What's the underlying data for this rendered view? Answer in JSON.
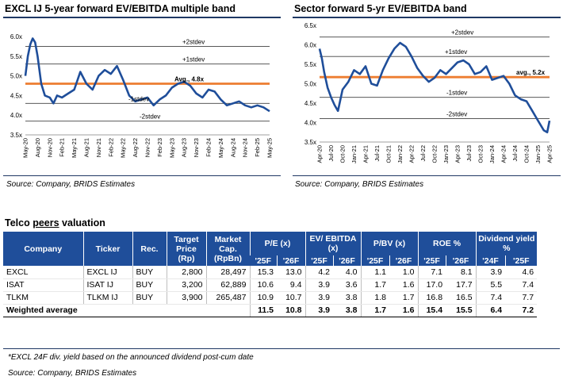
{
  "chart_data": [
    {
      "type": "line",
      "title": "EXCL IJ 5-year forward EV/EBITDA multiple band",
      "xlabel": "",
      "ylabel": "",
      "ylim": [
        3.5,
        6.0
      ],
      "yticks": [
        "3.5x",
        "4.0x",
        "4.5x",
        "5.0x",
        "5.5x",
        "6.0x"
      ],
      "xticks": [
        "May-20",
        "Aug-20",
        "Nov-20",
        "Feb-21",
        "May-21",
        "Aug-21",
        "Nov-21",
        "Feb-22",
        "May-22",
        "Aug-22",
        "Nov-22",
        "Feb-23",
        "May-23",
        "Aug-23",
        "Nov-23",
        "Feb-24",
        "May-24",
        "Aug-24",
        "Nov-24",
        "Feb-25",
        "May-25"
      ],
      "series": [
        {
          "name": "EV/EBITDA",
          "x": [
            0,
            0.2,
            0.4,
            0.6,
            0.8,
            1,
            1.3,
            1.6,
            2,
            2.3,
            2.6,
            3,
            3.5,
            4,
            4.5,
            5,
            5.5,
            6,
            6.5,
            7,
            7.5,
            8,
            8.5,
            9,
            9.5,
            10,
            10.5,
            11,
            11.5,
            12,
            12.5,
            13,
            13.5,
            14,
            14.5,
            15,
            15.5,
            16,
            16.5,
            17,
            17.5,
            18,
            18.5,
            19,
            19.5,
            20
          ],
          "values": [
            5.0,
            5.5,
            5.8,
            5.95,
            5.85,
            5.5,
            4.8,
            4.5,
            4.45,
            4.3,
            4.5,
            4.45,
            4.55,
            4.65,
            5.1,
            4.8,
            4.65,
            5.0,
            5.15,
            5.05,
            5.25,
            4.9,
            4.5,
            4.35,
            4.4,
            4.45,
            4.25,
            4.4,
            4.5,
            4.7,
            4.8,
            4.85,
            4.75,
            4.55,
            4.45,
            4.65,
            4.6,
            4.4,
            4.25,
            4.3,
            4.35,
            4.25,
            4.2,
            4.25,
            4.2,
            4.1
          ]
        }
      ],
      "bands": [
        {
          "label": "+2stdev",
          "value": 5.75
        },
        {
          "label": "+1stdev",
          "value": 5.3
        },
        {
          "label": "Avg., 4.8x",
          "value": 4.8
        },
        {
          "label": "-1stdev",
          "value": 4.3
        },
        {
          "label": "-2stdev",
          "value": 3.85
        }
      ],
      "source": "Source: Company, BRIDS Estimates"
    },
    {
      "type": "line",
      "title": "Sector forward 5-yr EV/EBITDA band",
      "xlabel": "",
      "ylabel": "",
      "ylim": [
        3.5,
        6.5
      ],
      "yticks": [
        "3.5x",
        "4.0x",
        "4.5x",
        "5.0x",
        "5.5x",
        "6.0x",
        "6.5x"
      ],
      "xticks": [
        "Apr-20",
        "Jul-20",
        "Oct-20",
        "Jan-21",
        "Apr-21",
        "Jul-21",
        "Oct-21",
        "Jan-22",
        "Apr-22",
        "Jul-22",
        "Oct-22",
        "Jan-23",
        "Apr-23",
        "Jul-23",
        "Oct-23",
        "Jan-24",
        "Apr-24",
        "Jul-24",
        "Oct-24",
        "Jan-25",
        "Apr-25"
      ],
      "series": [
        {
          "name": "EV/EBITDA",
          "x": [
            0,
            0.2,
            0.4,
            0.7,
            1,
            1.3,
            1.6,
            2,
            2.5,
            3,
            3.5,
            4,
            4.5,
            5,
            5.5,
            6,
            6.5,
            7,
            7.5,
            8,
            8.5,
            9,
            9.5,
            10,
            10.5,
            11,
            11.5,
            12,
            12.5,
            13,
            13.5,
            14,
            14.5,
            15,
            15.5,
            16,
            16.5,
            17,
            17.5,
            18,
            18.5,
            19,
            19.5,
            19.8,
            20
          ],
          "values": [
            5.9,
            5.65,
            5.3,
            4.9,
            4.65,
            4.45,
            4.3,
            4.85,
            5.05,
            5.35,
            5.25,
            5.45,
            5.0,
            4.95,
            5.35,
            5.65,
            5.9,
            6.05,
            5.95,
            5.7,
            5.4,
            5.2,
            5.05,
            5.15,
            5.35,
            5.25,
            5.4,
            5.55,
            5.6,
            5.5,
            5.25,
            5.3,
            5.45,
            5.1,
            5.15,
            5.2,
            5.0,
            4.7,
            4.6,
            4.55,
            4.3,
            4.05,
            3.8,
            3.75,
            4.05
          ]
        }
      ],
      "bands": [
        {
          "label": "+2stdev",
          "value": 6.2
        },
        {
          "label": "+1stdev",
          "value": 5.7
        },
        {
          "label": "avg., 5.2x",
          "value": 5.17
        },
        {
          "label": "-1stdev",
          "value": 4.65
        },
        {
          "label": "-2stdev",
          "value": 4.1
        }
      ],
      "source": "Source: Company, BRIDS Estimates"
    }
  ],
  "table": {
    "title_pre": "Telco ",
    "title_u": "peers",
    "title_post": " valuation",
    "headers": {
      "company": "Company",
      "ticker": "Ticker",
      "rec": "Rec.",
      "target": "Target Price (Rp)",
      "mcap": "Market Cap. (RpBn)",
      "pe": "P/E (x)",
      "evebitda": "EV/ EBITDA (x)",
      "pbv": "P/BV (x)",
      "roe": "ROE %",
      "div": "Dividend yield %",
      "y25": "'25F",
      "y26": "'26F",
      "y24": "'24F"
    },
    "rows": [
      {
        "company": "EXCL",
        "ticker": "EXCL IJ",
        "rec": "BUY",
        "target": "2,800",
        "mcap": "28,497",
        "pe25": "15.3",
        "pe26": "13.0",
        "ev25": "4.2",
        "ev26": "4.0",
        "pbv25": "1.1",
        "pbv26": "1.0",
        "roe25": "7.1",
        "roe26": "8.1",
        "dy24": "3.9",
        "dy25": "4.6"
      },
      {
        "company": "ISAT",
        "ticker": "ISAT IJ",
        "rec": "BUY",
        "target": "3,200",
        "mcap": "62,889",
        "pe25": "10.6",
        "pe26": "9.4",
        "ev25": "3.9",
        "ev26": "3.6",
        "pbv25": "1.7",
        "pbv26": "1.6",
        "roe25": "17.0",
        "roe26": "17.7",
        "dy24": "5.5",
        "dy25": "7.4"
      },
      {
        "company": "TLKM",
        "ticker": "TLKM IJ",
        "rec": "BUY",
        "target": "3,900",
        "mcap": "265,487",
        "pe25": "10.9",
        "pe26": "10.7",
        "ev25": "3.9",
        "ev26": "3.8",
        "pbv25": "1.8",
        "pbv26": "1.7",
        "roe25": "16.8",
        "roe26": "16.5",
        "dy24": "7.4",
        "dy25": "7.7"
      }
    ],
    "avg": {
      "label": "Weighted average",
      "pe25": "11.5",
      "pe26": "10.8",
      "ev25": "3.9",
      "ev26": "3.8",
      "pbv25": "1.7",
      "pbv26": "1.6",
      "roe25": "15.4",
      "roe26": "15.5",
      "dy24": "6.4",
      "dy25": "7.2"
    },
    "footnote": "*EXCL 24F div. yield based on the announced dividend post-cum date",
    "source": "Source: Company, BRIDS Estimates"
  },
  "colors": {
    "line": "#1f4e9a",
    "avg_band": "#ed7d31",
    "std_band": "#404040",
    "header": "#1f4e9a"
  }
}
